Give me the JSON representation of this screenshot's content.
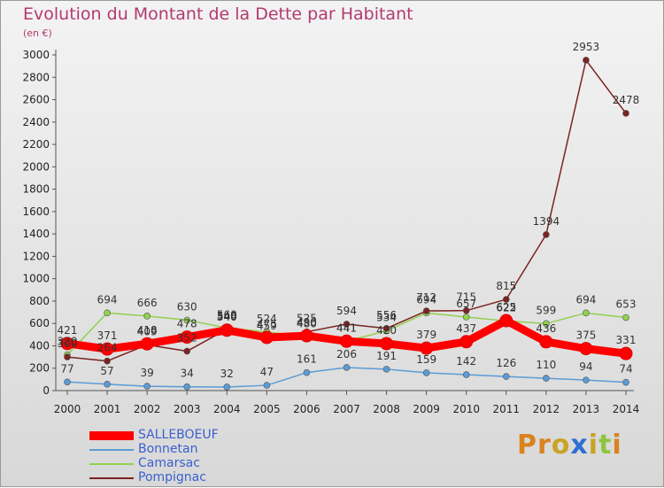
{
  "header": {
    "title": "Evolution du Montant de la Dette par Habitant",
    "subtitle": "(en €)"
  },
  "brand": {
    "text": "Proxiti",
    "letter_colors": [
      "#d9831f",
      "#d9831f",
      "#c9a326",
      "#2f6fd4",
      "#c9a326",
      "#8cc63f",
      "#d9831f"
    ]
  },
  "chart_data": {
    "type": "line",
    "x": [
      2000,
      2001,
      2002,
      2003,
      2004,
      2005,
      2006,
      2007,
      2008,
      2009,
      2010,
      2011,
      2012,
      2013,
      2014
    ],
    "ylim": [
      0,
      3000
    ],
    "yticks": [
      0,
      200,
      400,
      600,
      800,
      1000,
      1200,
      1400,
      1600,
      1800,
      2000,
      2200,
      2400,
      2600,
      2800,
      3000
    ],
    "grid": false,
    "legend_position": "bottom-left",
    "series": [
      {
        "name": "SALLEBOEUF",
        "color": "#ff0000",
        "values": [
          421,
          371,
          418,
          478,
          540,
          475,
          490,
          441,
          420,
          379,
          437,
          625,
          436,
          375,
          331
        ],
        "labels": [
          "421",
          "371",
          "418",
          "478",
          "540",
          "475",
          "490",
          "441",
          "420",
          "379",
          "437",
          "625",
          "436",
          "375",
          "331"
        ]
      },
      {
        "name": "Bonnetan",
        "color": "#5b9bd5",
        "values": [
          77,
          57,
          39,
          34,
          32,
          47,
          161,
          206,
          191,
          159,
          142,
          126,
          110,
          94,
          74
        ],
        "labels": [
          "77",
          "57",
          "39",
          "34",
          "32",
          "47",
          "161",
          "206",
          "191",
          "159",
          "142",
          "126",
          "110",
          "94",
          "74"
        ]
      },
      {
        "name": "Camarsac",
        "color": "#92d050",
        "values": [
          320,
          694,
          666,
          630,
          560,
          524,
          480,
          441,
          534,
          694,
          657,
          622,
          599,
          694,
          653
        ],
        "labels": [
          "320",
          "694",
          "666",
          "630",
          "560",
          "524",
          "480",
          "441",
          "534",
          "694",
          "657",
          "622",
          "599",
          "694",
          "653"
        ]
      },
      {
        "name": "Pompignac",
        "color": "#7b2222",
        "values": [
          300,
          264,
          409,
          352,
          548,
          459,
          525,
          594,
          556,
          712,
          715,
          815,
          1394,
          2953,
          2478
        ],
        "labels": [
          "300",
          "264",
          "409",
          "352",
          "548",
          "459",
          "525",
          "594",
          "556",
          "712",
          "715",
          "815",
          "1394",
          "2953",
          "2478"
        ]
      }
    ]
  }
}
